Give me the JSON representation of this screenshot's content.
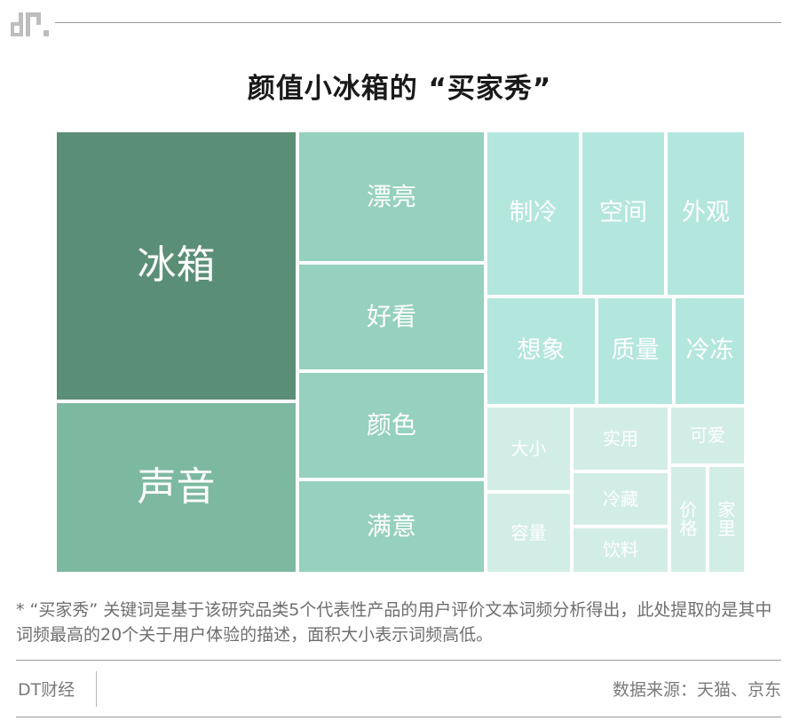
{
  "header": {
    "logo_text": "dt"
  },
  "chart_data": {
    "type": "treemap",
    "title": "颜值小冰箱的 “买家秀”",
    "value_meaning": "面积大小表示词频高低",
    "items": [
      {
        "name": "冰箱",
        "rank": 1,
        "color": "#5b8e76"
      },
      {
        "name": "声音",
        "rank": 2,
        "color": "#7db8a1"
      },
      {
        "name": "漂亮",
        "rank": 3,
        "color": "#96d0be"
      },
      {
        "name": "好看",
        "rank": 4,
        "color": "#96d0be"
      },
      {
        "name": "颜色",
        "rank": 5,
        "color": "#96d0be"
      },
      {
        "name": "满意",
        "rank": 6,
        "color": "#96d0be"
      },
      {
        "name": "制冷",
        "rank": 7,
        "color": "#b3e6dc"
      },
      {
        "name": "空间",
        "rank": 8,
        "color": "#b3e6dc"
      },
      {
        "name": "外观",
        "rank": 9,
        "color": "#b3e6dc"
      },
      {
        "name": "想象",
        "rank": 10,
        "color": "#b3e6dc"
      },
      {
        "name": "质量",
        "rank": 11,
        "color": "#b3e6dc"
      },
      {
        "name": "冷冻",
        "rank": 12,
        "color": "#b3e6dc"
      },
      {
        "name": "大小",
        "rank": 13,
        "color": "#d2ede6"
      },
      {
        "name": "实用",
        "rank": 14,
        "color": "#d2ede6"
      },
      {
        "name": "可爱",
        "rank": 15,
        "color": "#d2ede6"
      },
      {
        "name": "冷藏",
        "rank": 16,
        "color": "#d2ede6"
      },
      {
        "name": "容量",
        "rank": 17,
        "color": "#d2ede6"
      },
      {
        "name": "饮料",
        "rank": 18,
        "color": "#d2ede6"
      },
      {
        "name": "价格",
        "rank": 19,
        "color": "#d2ede6"
      },
      {
        "name": "家里",
        "rank": 20,
        "color": "#d2ede6"
      }
    ]
  },
  "footnote": "* “买家秀” 关键词是基于该研究品类5个代表性产品的用户评价文本词频分析得出，此处提取的是其中词频最高的20个关于用户体验的描述，面积大小表示词频高低。",
  "footer": {
    "brand": "DT财经",
    "source": "数据来源：天猫、京东"
  }
}
